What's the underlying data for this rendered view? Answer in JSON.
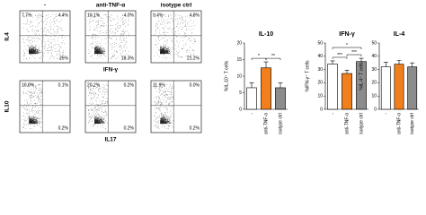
{
  "flow": {
    "columns": [
      "-",
      "anti-TNF-α",
      "isotype ctrl"
    ],
    "rows": [
      {
        "y_label": "IL4",
        "x_label": "IFN-γ",
        "panels": [
          [
            "7.7%",
            "4.4%",
            "25%"
          ],
          [
            "10.1%",
            "4.0%",
            "18.3%"
          ],
          [
            "9.4%",
            "4.8%",
            "21.2%"
          ]
        ]
      },
      {
        "y_label": "IL10",
        "x_label": "IL17",
        "panels": [
          [
            "10.8%",
            "0.1%",
            "0.2%"
          ],
          [
            "20.2%",
            "0.2%",
            "0.2%"
          ],
          [
            "11.9%",
            "0.0%",
            "0.2%"
          ]
        ]
      }
    ]
  },
  "chart_data": [
    {
      "type": "bar",
      "title": "IL-10",
      "y_label": "%IL-10⁺ T cells",
      "categories": [
        "-",
        "anti-TNF-α",
        "isotype ctrl"
      ],
      "values": [
        6.5,
        12.5,
        6.5
      ],
      "errors": [
        1.5,
        1.8,
        1.5
      ],
      "colors": [
        "#ffffff",
        "#f07f1c",
        "#8c8c8c"
      ],
      "ylim": [
        0,
        20
      ],
      "yticks": [
        0,
        5,
        10,
        15,
        20
      ],
      "comparisons": [
        {
          "label": "*",
          "pair": [
            0,
            1
          ]
        },
        {
          "label": "**",
          "pair": [
            1,
            2
          ]
        }
      ]
    },
    {
      "type": "bar",
      "title": "IFN-γ",
      "y_label": "%IFN-γ⁺ T cells",
      "categories": [
        "-",
        "anti-TNF-α",
        "isotype ctrl"
      ],
      "values": [
        34,
        27,
        36
      ],
      "errors": [
        2.5,
        2.5,
        2.5
      ],
      "colors": [
        "#ffffff",
        "#f07f1c",
        "#8c8c8c"
      ],
      "ylim": [
        0,
        50
      ],
      "yticks": [
        0,
        10,
        20,
        30,
        40,
        50
      ],
      "comparisons": [
        {
          "label": "***",
          "pair": [
            0,
            1
          ]
        },
        {
          "label": "***",
          "pair": [
            1,
            2
          ]
        },
        {
          "label": "*",
          "pair": [
            0,
            2
          ]
        }
      ]
    },
    {
      "type": "bar",
      "title": "IL-4",
      "y_label": "%IL-4⁺ T cells",
      "categories": [
        "-",
        "anti-TNF-α",
        "isotype ctrl"
      ],
      "values": [
        32,
        34,
        32
      ],
      "errors": [
        3.5,
        3,
        3
      ],
      "colors": [
        "#ffffff",
        "#f07f1c",
        "#8c8c8c"
      ],
      "ylim": [
        0,
        50
      ],
      "yticks": [
        0,
        10,
        20,
        30,
        40,
        50
      ],
      "comparisons": []
    }
  ]
}
